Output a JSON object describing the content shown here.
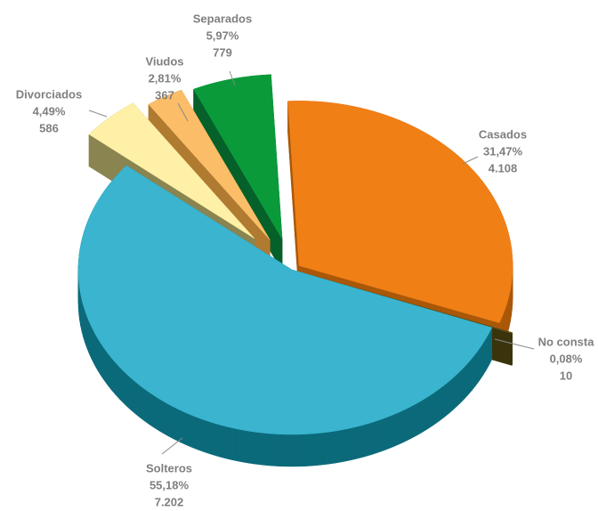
{
  "chart_data": {
    "type": "pie",
    "categories": [
      "Casados",
      "No consta",
      "Solteros",
      "Divorciados",
      "Viudos",
      "Separados"
    ],
    "values": [
      31.47,
      0.08,
      55.18,
      4.49,
      2.81,
      5.97
    ],
    "value_labels": [
      "31,47%",
      "0,08%",
      "55,18%",
      "4,49%",
      "2,81%",
      "5,97%"
    ],
    "counts": [
      4108,
      10,
      7202,
      586,
      367,
      779
    ],
    "count_labels": [
      "4.108",
      "10",
      "7.202",
      "586",
      "367",
      "779"
    ],
    "colors": [
      "#f07f16",
      "#5a5016",
      "#3ab4cf",
      "#fef0a6",
      "#fbbd68",
      "#0a9a3a"
    ],
    "side_colors": [
      "#a95708",
      "#3a330c",
      "#0b6a7a",
      "#8a8450",
      "#b07a30",
      "#06602a"
    ]
  }
}
